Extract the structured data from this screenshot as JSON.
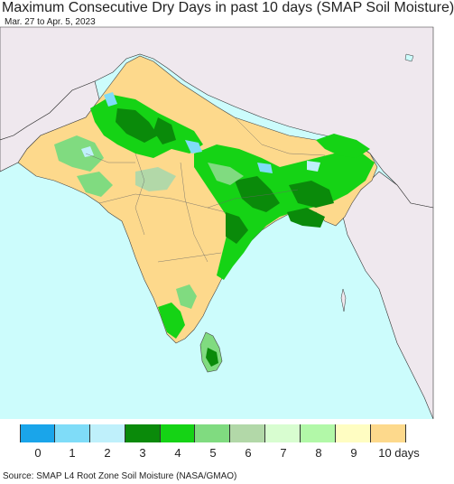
{
  "title": "Maximum Consecutive Dry Days in past 10 days (SMAP Soil Moisture)",
  "subtitle": "Mar. 27 to Apr. 5, 2023",
  "source": "Source: SMAP L4 Root Zone Soil Moisture (NASA/GMAO)",
  "legend": {
    "labels": [
      "0",
      "1",
      "2",
      "3",
      "4",
      "5",
      "6",
      "7",
      "8",
      "9",
      "10 days"
    ],
    "colors": [
      "#1aa5ea",
      "#7fdcf8",
      "#bff0fb",
      "#0a8a0a",
      "#15d315",
      "#80db80",
      "#b2d8a8",
      "#d8fdd0",
      "#b2f8a8",
      "#fffdc2",
      "#fdd98c"
    ]
  },
  "map_colors": {
    "ocean": "#ccfcfc",
    "outside_region": "#efe8ee",
    "dry_land": "#fdd98c"
  }
}
